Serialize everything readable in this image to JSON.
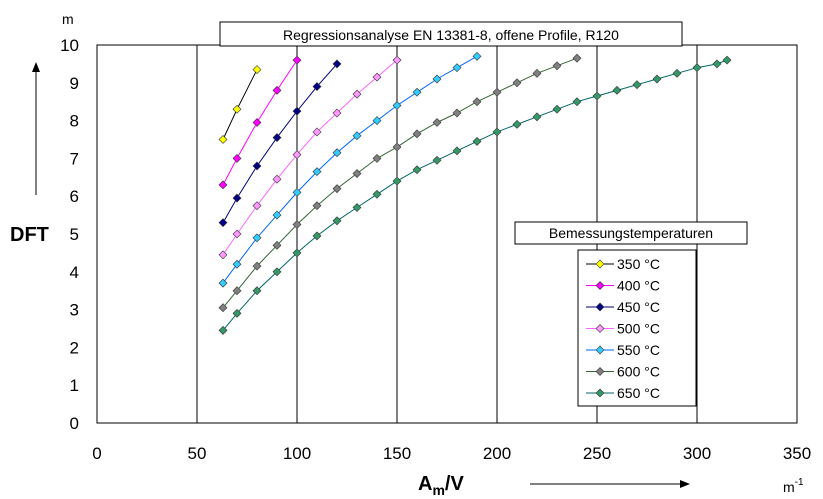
{
  "chart_data": {
    "type": "line",
    "title": "Regressionsanalyse EN 13381-8, offene Profile, R120",
    "xlabel_main": "A",
    "xlabel_sub": "m",
    "xlabel_suffix": "/V",
    "xunit": "m",
    "xunit_exp": "-1",
    "ylabel": "DFT",
    "yunit": "m",
    "xlim": [
      0,
      350
    ],
    "ylim": [
      0,
      10
    ],
    "xticks": [
      0,
      50,
      100,
      150,
      200,
      250,
      300,
      350
    ],
    "yticks": [
      0,
      1,
      2,
      3,
      4,
      5,
      6,
      7,
      8,
      9,
      10
    ],
    "grid": "vertical",
    "legend_title": "Bemessungstemperaturen",
    "legend_position": "right",
    "series": [
      {
        "name": "350 °C",
        "color": "#ffff00",
        "line_color": "#000000",
        "x": [
          63,
          70,
          80
        ],
        "y": [
          7.5,
          8.3,
          9.35
        ]
      },
      {
        "name": "400 °C",
        "color": "#ff00ff",
        "line_color": "#ff00ff",
        "x": [
          63,
          70,
          80,
          90,
          100
        ],
        "y": [
          6.3,
          7.0,
          7.95,
          8.8,
          9.6
        ]
      },
      {
        "name": "450 °C",
        "color": "#000080",
        "line_color": "#000080",
        "x": [
          63,
          70,
          80,
          90,
          100,
          110,
          120
        ],
        "y": [
          5.3,
          5.95,
          6.8,
          7.55,
          8.25,
          8.9,
          9.5
        ]
      },
      {
        "name": "500 °C",
        "color": "#ff99ff",
        "line_color": "#ff66ff",
        "x": [
          63,
          70,
          80,
          90,
          100,
          110,
          120,
          130,
          140,
          150
        ],
        "y": [
          4.45,
          5.0,
          5.75,
          6.45,
          7.1,
          7.7,
          8.2,
          8.7,
          9.15,
          9.6
        ]
      },
      {
        "name": "550 °C",
        "color": "#33ccff",
        "line_color": "#0066ff",
        "x": [
          63,
          70,
          80,
          90,
          100,
          110,
          120,
          130,
          140,
          150,
          160,
          170,
          180,
          190
        ],
        "y": [
          3.7,
          4.2,
          4.9,
          5.5,
          6.1,
          6.65,
          7.15,
          7.6,
          8.0,
          8.4,
          8.75,
          9.1,
          9.4,
          9.7
        ]
      },
      {
        "name": "600 °C",
        "color": "#808080",
        "line_color": "#336633",
        "x": [
          63,
          70,
          80,
          90,
          100,
          110,
          120,
          130,
          140,
          150,
          160,
          170,
          180,
          190,
          200,
          210,
          220,
          230,
          240
        ],
        "y": [
          3.05,
          3.5,
          4.15,
          4.7,
          5.25,
          5.75,
          6.2,
          6.6,
          7.0,
          7.3,
          7.65,
          7.95,
          8.2,
          8.5,
          8.75,
          9.0,
          9.25,
          9.45,
          9.65
        ]
      },
      {
        "name": "650 °C",
        "color": "#339966",
        "line_color": "#006666",
        "x": [
          63,
          70,
          80,
          90,
          100,
          110,
          120,
          130,
          140,
          150,
          160,
          170,
          180,
          190,
          200,
          210,
          220,
          230,
          240,
          250,
          260,
          270,
          280,
          290,
          300,
          310,
          315
        ],
        "y": [
          2.45,
          2.9,
          3.5,
          4.0,
          4.5,
          4.95,
          5.35,
          5.7,
          6.05,
          6.4,
          6.7,
          6.95,
          7.2,
          7.45,
          7.7,
          7.9,
          8.1,
          8.3,
          8.5,
          8.65,
          8.8,
          8.95,
          9.1,
          9.25,
          9.4,
          9.5,
          9.6
        ]
      }
    ]
  }
}
